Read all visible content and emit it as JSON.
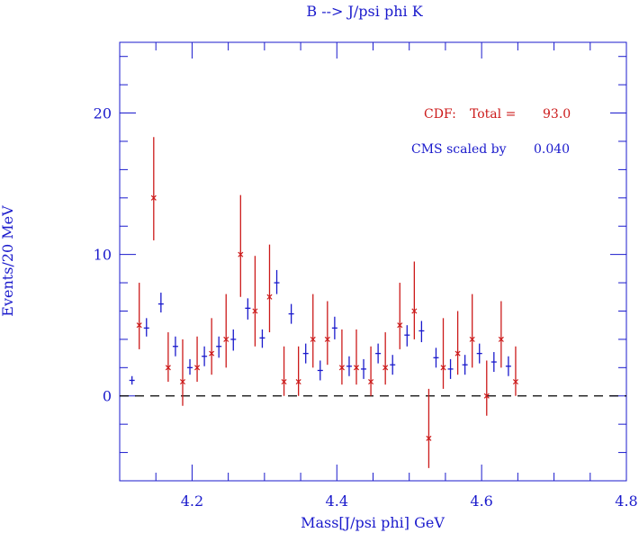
{
  "chart_data": {
    "type": "scatter",
    "title": "B --> J/psi phi K",
    "xlabel": "Mass[J/psi phi] GeV",
    "ylabel": "Events/20 MeV",
    "xlim": [
      4.1,
      4.8
    ],
    "ylim": [
      -6,
      25
    ],
    "xticks": [
      4.2,
      4.4,
      4.6,
      4.8
    ],
    "xtick_labels": [
      "4.2",
      "4.4",
      "4.6",
      "4.8"
    ],
    "yticks": [
      0,
      10,
      20
    ],
    "ytick_labels": [
      "0",
      "10",
      "20"
    ],
    "reference_line": 0,
    "series": [
      {
        "name": "CDF",
        "color": "#cc1a1a",
        "marker": "x",
        "points": [
          {
            "x": 4.127,
            "y": 5.0,
            "lo": 3.3,
            "hi": 8.0
          },
          {
            "x": 4.147,
            "y": 14.0,
            "lo": 11.0,
            "hi": 18.3
          },
          {
            "x": 4.167,
            "y": 2.0,
            "lo": 1.0,
            "hi": 4.5
          },
          {
            "x": 4.187,
            "y": 1.0,
            "lo": -0.7,
            "hi": 4.0
          },
          {
            "x": 4.207,
            "y": 2.0,
            "lo": 1.0,
            "hi": 4.2
          },
          {
            "x": 4.227,
            "y": 3.0,
            "lo": 1.5,
            "hi": 5.5
          },
          {
            "x": 4.247,
            "y": 4.0,
            "lo": 2.0,
            "hi": 7.2
          },
          {
            "x": 4.267,
            "y": 10.0,
            "lo": 7.0,
            "hi": 14.2
          },
          {
            "x": 4.287,
            "y": 6.0,
            "lo": 3.5,
            "hi": 9.9
          },
          {
            "x": 4.307,
            "y": 7.0,
            "lo": 4.5,
            "hi": 10.7
          },
          {
            "x": 4.327,
            "y": 1.0,
            "lo": 0.0,
            "hi": 3.5
          },
          {
            "x": 4.347,
            "y": 1.0,
            "lo": 0.0,
            "hi": 3.5
          },
          {
            "x": 4.367,
            "y": 4.0,
            "lo": 2.0,
            "hi": 7.2
          },
          {
            "x": 4.387,
            "y": 4.0,
            "lo": 2.2,
            "hi": 6.7
          },
          {
            "x": 4.407,
            "y": 2.0,
            "lo": 0.8,
            "hi": 4.7
          },
          {
            "x": 4.427,
            "y": 2.0,
            "lo": 0.8,
            "hi": 4.7
          },
          {
            "x": 4.447,
            "y": 1.0,
            "lo": 0.0,
            "hi": 3.5
          },
          {
            "x": 4.467,
            "y": 2.0,
            "lo": 0.8,
            "hi": 4.5
          },
          {
            "x": 4.487,
            "y": 5.0,
            "lo": 3.3,
            "hi": 8.0
          },
          {
            "x": 4.507,
            "y": 6.0,
            "lo": 4.0,
            "hi": 9.5
          },
          {
            "x": 4.527,
            "y": -3.0,
            "lo": -5.1,
            "hi": 0.5
          },
          {
            "x": 4.547,
            "y": 2.0,
            "lo": 0.5,
            "hi": 5.5
          },
          {
            "x": 4.567,
            "y": 3.0,
            "lo": 1.5,
            "hi": 6.0
          },
          {
            "x": 4.587,
            "y": 4.0,
            "lo": 2.0,
            "hi": 7.2
          },
          {
            "x": 4.607,
            "y": 0.0,
            "lo": -1.4,
            "hi": 2.5
          },
          {
            "x": 4.627,
            "y": 4.0,
            "lo": 2.0,
            "hi": 6.7
          },
          {
            "x": 4.647,
            "y": 1.0,
            "lo": 0.0,
            "hi": 3.5
          }
        ]
      },
      {
        "name": "CMS scaled",
        "color": "#1a1acc",
        "marker": "tick",
        "points": [
          {
            "x": 4.117,
            "y": 1.1,
            "lo": 0.8,
            "hi": 1.4
          },
          {
            "x": 4.137,
            "y": 4.8,
            "lo": 4.2,
            "hi": 5.5
          },
          {
            "x": 4.157,
            "y": 6.5,
            "lo": 5.9,
            "hi": 7.3
          },
          {
            "x": 4.177,
            "y": 3.5,
            "lo": 2.8,
            "hi": 4.2
          },
          {
            "x": 4.197,
            "y": 2.0,
            "lo": 1.5,
            "hi": 2.6
          },
          {
            "x": 4.217,
            "y": 2.8,
            "lo": 2.1,
            "hi": 3.5
          },
          {
            "x": 4.237,
            "y": 3.5,
            "lo": 2.7,
            "hi": 4.2
          },
          {
            "x": 4.257,
            "y": 4.0,
            "lo": 3.2,
            "hi": 4.7
          },
          {
            "x": 4.277,
            "y": 6.2,
            "lo": 5.4,
            "hi": 6.9
          },
          {
            "x": 4.297,
            "y": 4.1,
            "lo": 3.4,
            "hi": 4.7
          },
          {
            "x": 4.317,
            "y": 8.0,
            "lo": 7.2,
            "hi": 8.9
          },
          {
            "x": 4.337,
            "y": 5.8,
            "lo": 5.1,
            "hi": 6.5
          },
          {
            "x": 4.357,
            "y": 3.0,
            "lo": 2.3,
            "hi": 3.7
          },
          {
            "x": 4.377,
            "y": 1.8,
            "lo": 1.1,
            "hi": 2.5
          },
          {
            "x": 4.397,
            "y": 4.8,
            "lo": 4.0,
            "hi": 5.6
          },
          {
            "x": 4.417,
            "y": 2.1,
            "lo": 1.4,
            "hi": 2.8
          },
          {
            "x": 4.437,
            "y": 1.9,
            "lo": 1.2,
            "hi": 2.6
          },
          {
            "x": 4.457,
            "y": 3.0,
            "lo": 2.3,
            "hi": 3.7
          },
          {
            "x": 4.477,
            "y": 2.2,
            "lo": 1.5,
            "hi": 2.9
          },
          {
            "x": 4.497,
            "y": 4.3,
            "lo": 3.5,
            "hi": 5.0
          },
          {
            "x": 4.517,
            "y": 4.6,
            "lo": 3.8,
            "hi": 5.3
          },
          {
            "x": 4.537,
            "y": 2.7,
            "lo": 2.0,
            "hi": 3.4
          },
          {
            "x": 4.557,
            "y": 1.9,
            "lo": 1.2,
            "hi": 2.6
          },
          {
            "x": 4.577,
            "y": 2.2,
            "lo": 1.5,
            "hi": 2.9
          },
          {
            "x": 4.597,
            "y": 3.0,
            "lo": 2.3,
            "hi": 3.7
          },
          {
            "x": 4.617,
            "y": 2.4,
            "lo": 1.7,
            "hi": 3.1
          },
          {
            "x": 4.637,
            "y": 2.1,
            "lo": 1.4,
            "hi": 2.8
          }
        ]
      }
    ],
    "annotations": {
      "cdf_label": "CDF:",
      "cdf_total_label": "Total =",
      "cdf_total_value": "93.0",
      "cms_label": "CMS scaled by",
      "cms_scale_value": "0.040"
    },
    "colors": {
      "axis": "#1a1acc",
      "cdf": "#cc1a1a",
      "cms": "#1a1acc",
      "zero_line": "#000000"
    }
  }
}
